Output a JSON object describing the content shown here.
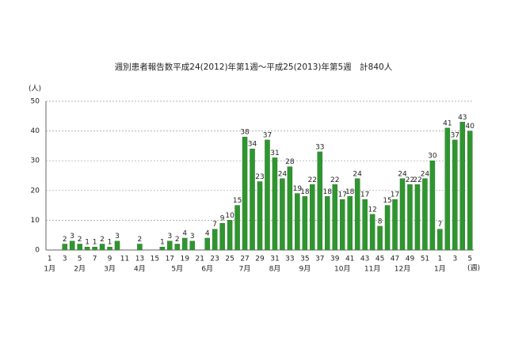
{
  "chart_data": {
    "type": "bar",
    "title": "週別患者報告数平成24(2012)年第1週～平成25(2013)年第5週　計840人",
    "y_label": "(人)",
    "x_label": "(週)",
    "categories": [
      "1",
      null,
      "3",
      null,
      "5",
      null,
      "7",
      null,
      "9",
      null,
      "11",
      null,
      "13",
      null,
      "15",
      null,
      "17",
      null,
      "19",
      null,
      "21",
      null,
      "23",
      null,
      "25",
      null,
      "27",
      null,
      "29",
      null,
      "31",
      null,
      "33",
      null,
      "35",
      null,
      "37",
      null,
      "39",
      null,
      "41",
      null,
      "43",
      null,
      "45",
      null,
      "47",
      null,
      "49",
      null,
      "51",
      null,
      "1",
      null,
      "3",
      null,
      "5"
    ],
    "month_labels": [
      "1月",
      null,
      null,
      null,
      "2月",
      null,
      null,
      null,
      "3月",
      null,
      null,
      null,
      "4月",
      null,
      null,
      null,
      null,
      "5月",
      null,
      null,
      null,
      "6月",
      null,
      null,
      null,
      null,
      "7月",
      null,
      null,
      null,
      "8月",
      null,
      null,
      null,
      "9月",
      null,
      null,
      null,
      null,
      "10月",
      null,
      null,
      null,
      "11月",
      null,
      null,
      null,
      "12月",
      null,
      null,
      null,
      null,
      "1月",
      null,
      null,
      null,
      null
    ],
    "values": [
      0,
      0,
      2,
      3,
      2,
      1,
      1,
      2,
      1,
      3,
      0,
      0,
      2,
      0,
      0,
      1,
      3,
      2,
      4,
      3,
      0,
      4,
      7,
      9,
      10,
      15,
      38,
      34,
      23,
      37,
      31,
      24,
      28,
      19,
      18,
      22,
      33,
      18,
      22,
      17,
      18,
      24,
      17,
      12,
      8,
      15,
      17,
      24,
      22,
      22,
      24,
      30,
      7,
      41,
      37,
      43,
      40
    ],
    "color": "#2f962f",
    "ylim": [
      0,
      50
    ],
    "yticks": [
      0,
      10,
      20,
      30,
      40,
      50
    ],
    "grid": true
  }
}
